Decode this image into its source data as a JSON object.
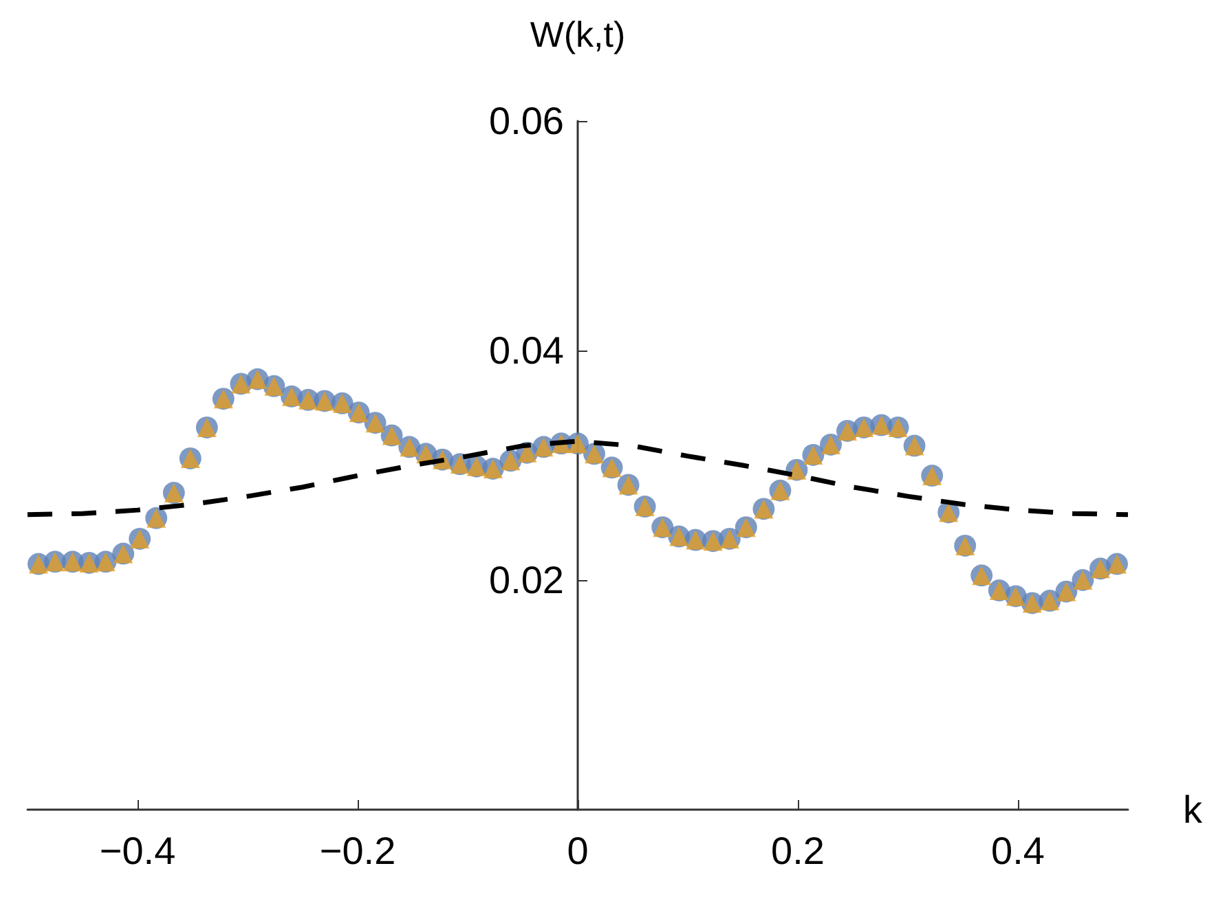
{
  "chart_data": {
    "type": "scatter",
    "xlabel": "k",
    "ylabel": "W(k,t)",
    "x": [
      -0.49,
      -0.475,
      -0.459,
      -0.444,
      -0.429,
      -0.413,
      -0.398,
      -0.383,
      -0.367,
      -0.352,
      -0.337,
      -0.322,
      -0.306,
      -0.291,
      -0.276,
      -0.26,
      -0.245,
      -0.23,
      -0.214,
      -0.199,
      -0.184,
      -0.169,
      -0.153,
      -0.138,
      -0.123,
      -0.107,
      -0.092,
      -0.077,
      -0.061,
      -0.046,
      -0.031,
      -0.015,
      0,
      0.015,
      0.031,
      0.046,
      0.061,
      0.077,
      0.092,
      0.107,
      0.123,
      0.138,
      0.153,
      0.169,
      0.184,
      0.199,
      0.214,
      0.23,
      0.245,
      0.26,
      0.276,
      0.291,
      0.306,
      0.322,
      0.337,
      0.352,
      0.367,
      0.383,
      0.398,
      0.413,
      0.429,
      0.444,
      0.459,
      0.475,
      0.49
    ],
    "series": [
      {
        "marker": "circle",
        "color": "#5e81b5",
        "values": [
          0.0214,
          0.0216,
          0.0216,
          0.0215,
          0.0216,
          0.0223,
          0.0236,
          0.0254,
          0.0276,
          0.0306,
          0.0333,
          0.0358,
          0.0371,
          0.0375,
          0.0369,
          0.036,
          0.0357,
          0.0356,
          0.0354,
          0.0346,
          0.0337,
          0.0326,
          0.0316,
          0.031,
          0.0305,
          0.0301,
          0.0299,
          0.0297,
          0.0304,
          0.0311,
          0.0316,
          0.0319,
          0.0319,
          0.031,
          0.0298,
          0.0283,
          0.0264,
          0.0246,
          0.0238,
          0.0235,
          0.0234,
          0.0236,
          0.0246,
          0.0262,
          0.0278,
          0.0296,
          0.0309,
          0.0318,
          0.033,
          0.0333,
          0.0335,
          0.0333,
          0.0317,
          0.0291,
          0.0259,
          0.023,
          0.0204,
          0.0191,
          0.0186,
          0.018,
          0.0182,
          0.019,
          0.02,
          0.021,
          0.0214
        ]
      },
      {
        "marker": "triangle",
        "color": "#e19c24",
        "values": [
          0.0214,
          0.0216,
          0.0216,
          0.0215,
          0.0216,
          0.0223,
          0.0236,
          0.0254,
          0.0276,
          0.0306,
          0.0333,
          0.0358,
          0.0371,
          0.0375,
          0.0369,
          0.036,
          0.0357,
          0.0356,
          0.0354,
          0.0346,
          0.0337,
          0.0326,
          0.0316,
          0.031,
          0.0305,
          0.0301,
          0.0299,
          0.0297,
          0.0304,
          0.0311,
          0.0316,
          0.0319,
          0.0319,
          0.031,
          0.0298,
          0.0283,
          0.0264,
          0.0246,
          0.0238,
          0.0235,
          0.0234,
          0.0236,
          0.0246,
          0.0262,
          0.0278,
          0.0296,
          0.0309,
          0.0318,
          0.033,
          0.0333,
          0.0335,
          0.0333,
          0.0317,
          0.0291,
          0.0259,
          0.023,
          0.0204,
          0.0191,
          0.0186,
          0.018,
          0.0182,
          0.019,
          0.02,
          0.021,
          0.0214
        ]
      },
      {
        "type": "line",
        "marker": "none",
        "line_style": "dashed",
        "color": "#000000",
        "x": [
          -0.5,
          -0.45,
          -0.4,
          -0.35,
          -0.3,
          -0.25,
          -0.2,
          -0.15,
          -0.1,
          -0.05,
          0,
          0.05,
          0.1,
          0.15,
          0.2,
          0.25,
          0.3,
          0.35,
          0.4,
          0.45,
          0.5
        ],
        "values": [
          0.0257,
          0.0258,
          0.0261,
          0.0266,
          0.0273,
          0.0281,
          0.0291,
          0.03,
          0.0308,
          0.0317,
          0.0321,
          0.0317,
          0.0308,
          0.03,
          0.0291,
          0.0281,
          0.0273,
          0.0266,
          0.0261,
          0.0258,
          0.0257
        ]
      }
    ],
    "xlim": [
      -0.5,
      0.5
    ],
    "xticks": [
      {
        "value": -0.4,
        "label": "−0.4"
      },
      {
        "value": -0.2,
        "label": "−0.2"
      },
      0,
      0.2,
      0.4
    ],
    "ylim": [
      0,
      0.06
    ],
    "yticks": [
      0.02,
      0.04,
      0.06
    ]
  }
}
